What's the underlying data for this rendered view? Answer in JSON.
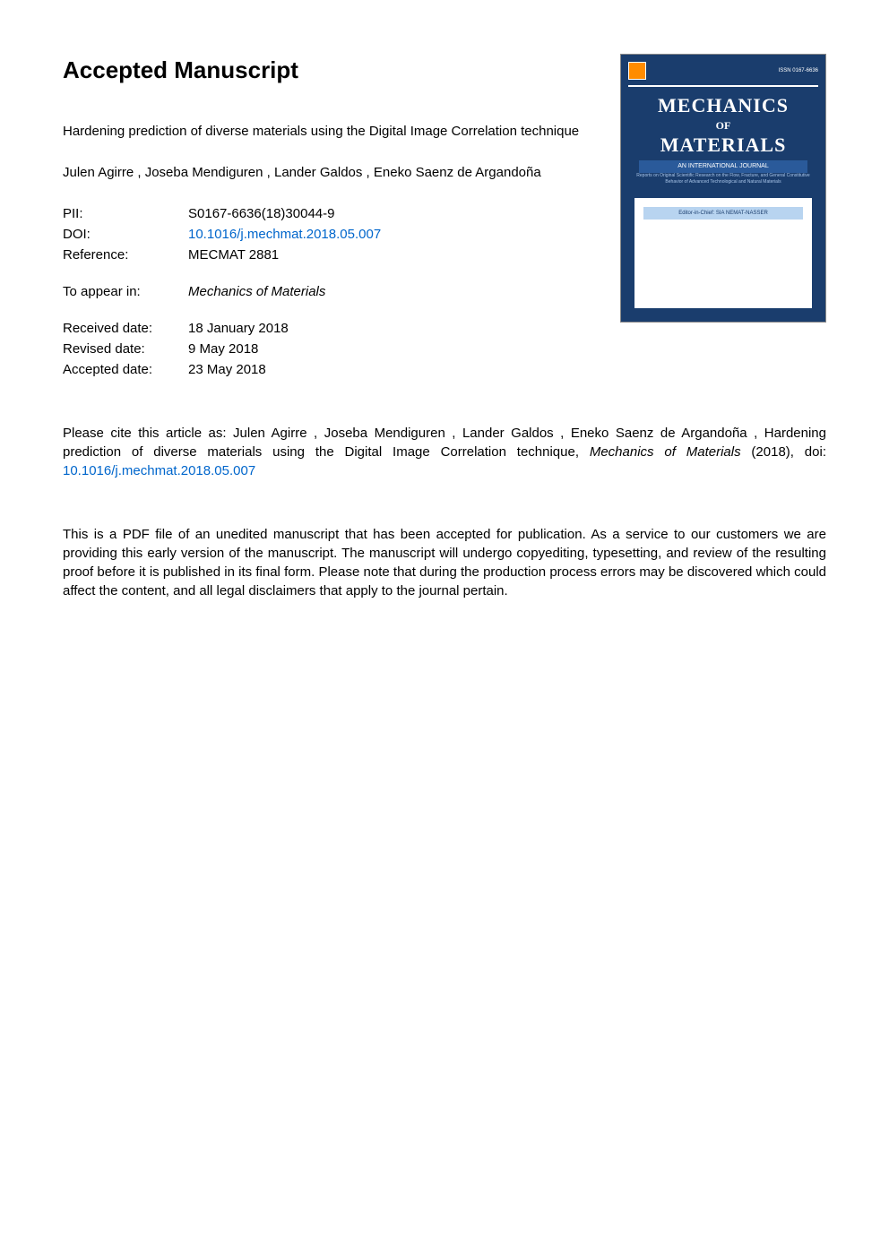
{
  "heading": "Accepted Manuscript",
  "article": {
    "title": "Hardening prediction of diverse materials using the Digital Image Correlation technique",
    "authors": "Julen Agirre ,  Joseba Mendiguren ,  Lander Galdos , Eneko Saenz de Argandoña"
  },
  "metadata": {
    "pii_label": "PII:",
    "pii_value": "S0167-6636(18)30044-9",
    "doi_label": "DOI:",
    "doi_value": "10.1016/j.mechmat.2018.05.007",
    "reference_label": "Reference:",
    "reference_value": "MECMAT 2881",
    "appear_label": "To appear in:",
    "appear_value": "Mechanics of Materials",
    "received_label": "Received date:",
    "received_value": "18 January 2018",
    "revised_label": "Revised date:",
    "revised_value": "9 May 2018",
    "accepted_label": "Accepted date:",
    "accepted_value": "23 May 2018"
  },
  "cover": {
    "issn": "ISSN 0167-6636",
    "title_line1": "MECHANICS",
    "title_of": "OF",
    "title_line2": "MATERIALS",
    "subtitle": "AN INTERNATIONAL JOURNAL",
    "description": "Reports on Original Scientific Research on the Flow, Fracture, and General Constitutive Behavior of Advanced Technological and Natural Materials",
    "editor": "Editor-in-Chief: SIA NEMAT-NASSER",
    "colors": {
      "background": "#1a3d6d",
      "text": "#ffffff",
      "accent": "#2a5a9a",
      "whitebox": "#ffffff",
      "editor_bg": "#b8d4f0"
    }
  },
  "citation": {
    "prefix": "Please cite this article as: Julen Agirre , Joseba Mendiguren , Lander Galdos , Eneko Saenz de Argandoña , Hardening prediction of diverse materials using the Digital Image Correlation technique, ",
    "journal": "Mechanics of Materials",
    "year": " (2018), doi: ",
    "doi_link": "10.1016/j.mechmat.2018.05.007"
  },
  "disclaimer": "This is a PDF file of an unedited manuscript that has been accepted for publication. As a service to our customers we are providing this early version of the manuscript. The manuscript will undergo copyediting, typesetting, and review of the resulting proof before it is published in its final form. Please note that during the production process errors may be discovered which could affect the content, and all legal disclaimers that apply to the journal pertain.",
  "link_color": "#0066cc"
}
